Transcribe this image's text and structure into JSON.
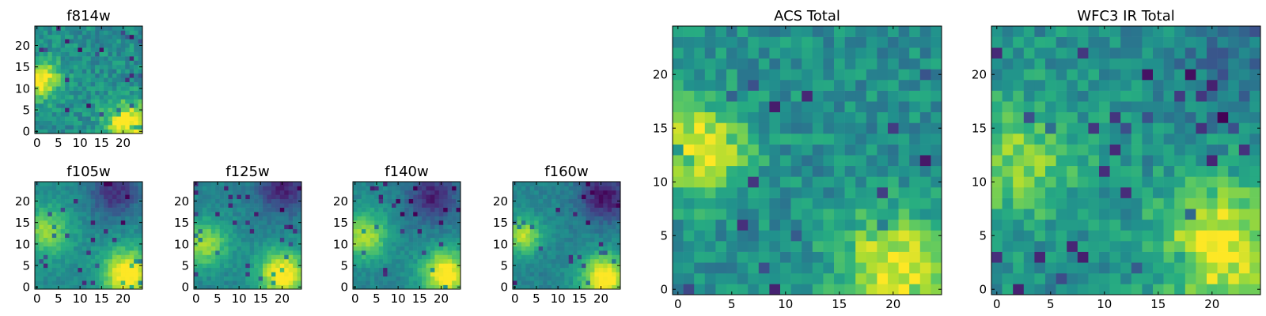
{
  "colormap": [
    "#440154",
    "#472c7a",
    "#3b518b",
    "#2c718e",
    "#21908d",
    "#27ad81",
    "#5cc863",
    "#aadc32",
    "#fde725"
  ],
  "chart_data": [
    {
      "id": "f814w",
      "type": "heatmap",
      "title": "f814w",
      "grid_size": 25,
      "xticks": [
        0,
        5,
        10,
        15,
        20
      ],
      "yticks": [
        0,
        5,
        10,
        15,
        20
      ],
      "noise": 0.12,
      "features": [
        {
          "x": 1,
          "y": 12,
          "amp": 0.55,
          "sigma": 3
        },
        {
          "x": 21,
          "y": 2,
          "amp": 0.55,
          "sigma": 3.5
        }
      ],
      "base": 0.5
    },
    {
      "id": "f105w",
      "type": "heatmap",
      "title": "f105w",
      "grid_size": 25,
      "xticks": [
        0,
        5,
        10,
        15,
        20
      ],
      "yticks": [
        0,
        5,
        10,
        15,
        20
      ],
      "noise": 0.06,
      "features": [
        {
          "x": 2,
          "y": 13,
          "amp": 0.35,
          "sigma": 4
        },
        {
          "x": 21,
          "y": 3,
          "amp": 0.6,
          "sigma": 4
        },
        {
          "x": 18,
          "y": 22,
          "amp": -0.35,
          "sigma": 4
        }
      ],
      "base": 0.48
    },
    {
      "id": "f125w",
      "type": "heatmap",
      "title": "f125w",
      "grid_size": 25,
      "xticks": [
        0,
        5,
        10,
        15,
        20
      ],
      "yticks": [
        0,
        5,
        10,
        15,
        20
      ],
      "noise": 0.06,
      "features": [
        {
          "x": 2,
          "y": 10,
          "amp": 0.4,
          "sigma": 4
        },
        {
          "x": 20,
          "y": 3,
          "amp": 0.6,
          "sigma": 4
        },
        {
          "x": 20,
          "y": 23,
          "amp": -0.35,
          "sigma": 4
        }
      ],
      "base": 0.45
    },
    {
      "id": "f140w",
      "type": "heatmap",
      "title": "f140w",
      "grid_size": 25,
      "xticks": [
        0,
        5,
        10,
        15,
        20
      ],
      "yticks": [
        0,
        5,
        10,
        15,
        20
      ],
      "noise": 0.06,
      "features": [
        {
          "x": 2,
          "y": 12,
          "amp": 0.45,
          "sigma": 4
        },
        {
          "x": 21,
          "y": 3,
          "amp": 0.6,
          "sigma": 4
        },
        {
          "x": 18,
          "y": 21,
          "amp": -0.35,
          "sigma": 4
        }
      ],
      "base": 0.45
    },
    {
      "id": "f160w",
      "type": "heatmap",
      "title": "f160w",
      "grid_size": 25,
      "xticks": [
        0,
        5,
        10,
        15,
        20
      ],
      "yticks": [
        0,
        5,
        10,
        15,
        20
      ],
      "noise": 0.06,
      "features": [
        {
          "x": 2,
          "y": 12,
          "amp": 0.45,
          "sigma": 3
        },
        {
          "x": 21,
          "y": 2,
          "amp": 0.6,
          "sigma": 4
        },
        {
          "x": 21,
          "y": 21,
          "amp": -0.4,
          "sigma": 4
        }
      ],
      "base": 0.45
    },
    {
      "id": "acs-total",
      "type": "heatmap",
      "title": "ACS Total",
      "grid_size": 25,
      "xticks": [
        0,
        5,
        10,
        15,
        20
      ],
      "yticks": [
        0,
        5,
        10,
        15,
        20
      ],
      "noise": 0.13,
      "features": [
        {
          "x": 2,
          "y": 13,
          "amp": 0.5,
          "sigma": 3
        },
        {
          "x": 20,
          "y": 2,
          "amp": 0.5,
          "sigma": 3.5
        }
      ],
      "base": 0.5
    },
    {
      "id": "wfc3-ir-total",
      "type": "heatmap",
      "title": "WFC3 IR Total",
      "grid_size": 25,
      "xticks": [
        0,
        5,
        10,
        15,
        20
      ],
      "yticks": [
        0,
        5,
        10,
        15,
        20
      ],
      "noise": 0.13,
      "features": [
        {
          "x": 2,
          "y": 12,
          "amp": 0.3,
          "sigma": 4
        },
        {
          "x": 21,
          "y": 4,
          "amp": 0.5,
          "sigma": 4
        },
        {
          "x": 22,
          "y": 22,
          "amp": -0.15,
          "sigma": 4
        }
      ],
      "base": 0.5
    }
  ]
}
